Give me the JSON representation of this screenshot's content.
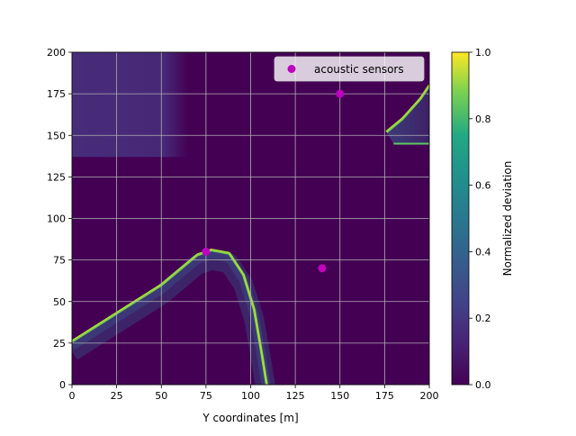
{
  "chart_data": {
    "type": "heatmap",
    "xlabel": "Y coordinates [m]",
    "ylabel": "",
    "xlim": [
      0,
      200
    ],
    "ylim": [
      0,
      200
    ],
    "xticks": [
      0,
      25,
      50,
      75,
      100,
      125,
      150,
      175,
      200
    ],
    "yticks": [
      0,
      25,
      50,
      75,
      100,
      125,
      150,
      175,
      200
    ],
    "grid": true,
    "legend": {
      "placement": "top-right",
      "entries": [
        "acoustic sensors"
      ]
    },
    "colorbar": {
      "label": "Normalized deviation",
      "range": [
        0.0,
        1.0
      ],
      "ticks": [
        "0.0",
        "0.2",
        "0.4",
        "0.6",
        "0.8",
        "1.0"
      ],
      "colormap": "viridis"
    },
    "background_value": 0.0,
    "regions": [
      {
        "shape": "rect",
        "x": [
          0,
          65
        ],
        "y": [
          137,
          200
        ],
        "value": 0.12
      },
      {
        "shape": "curve-ridge",
        "points": [
          [
            0,
            26
          ],
          [
            25,
            43
          ],
          [
            50,
            60
          ],
          [
            70,
            78
          ],
          [
            78,
            81
          ],
          [
            88,
            79
          ],
          [
            96,
            66
          ],
          [
            102,
            45
          ],
          [
            106,
            20
          ],
          [
            109,
            0
          ]
        ],
        "edge_value": 0.75,
        "falloff": "downward"
      },
      {
        "shape": "curve-ridge",
        "points": [
          [
            176,
            152
          ],
          [
            185,
            160
          ],
          [
            195,
            172
          ],
          [
            200,
            180
          ]
        ],
        "edge_value": 0.75,
        "lower_edge_y": 145,
        "fill_value": 0.3
      }
    ],
    "series": [
      {
        "name": "acoustic sensors",
        "type": "scatter",
        "marker": "circle",
        "color": "#bf00bf",
        "x": [
          75,
          140,
          150
        ],
        "y": [
          80,
          70,
          175
        ]
      }
    ]
  }
}
